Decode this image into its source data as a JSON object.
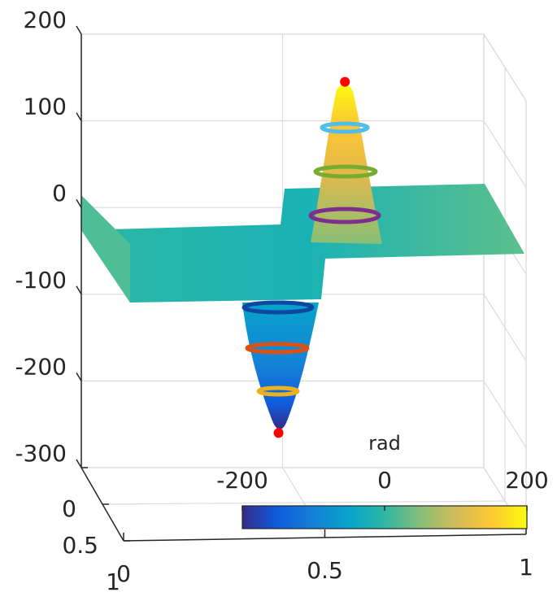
{
  "chart_data": {
    "type": "surface3d",
    "xlim": [
      0,
      1
    ],
    "xticks": [
      0,
      0.5,
      1
    ],
    "ylim": [
      0,
      1
    ],
    "yticks": [
      0,
      0.5,
      1
    ],
    "zlim": [
      -300,
      200
    ],
    "zticks": [
      -300,
      -200,
      -100,
      0,
      100,
      200
    ],
    "grid": true,
    "colorbar": {
      "label": "rad",
      "clim": [
        -200,
        200
      ],
      "ticks": [
        -200,
        0,
        200
      ],
      "location": "south",
      "colors": [
        "#352a87",
        "#0f5cdd",
        "#1481d6",
        "#06a4ca",
        "#2eb7a4",
        "#87bf77",
        "#d1bb59",
        "#fec832",
        "#f9fb0e"
      ]
    },
    "markers": {
      "color": "#ff0000",
      "x": [
        0.655,
        0.49
      ],
      "y": [
        0,
        0
      ],
      "z": [
        145,
        -260
      ]
    }
  }
}
